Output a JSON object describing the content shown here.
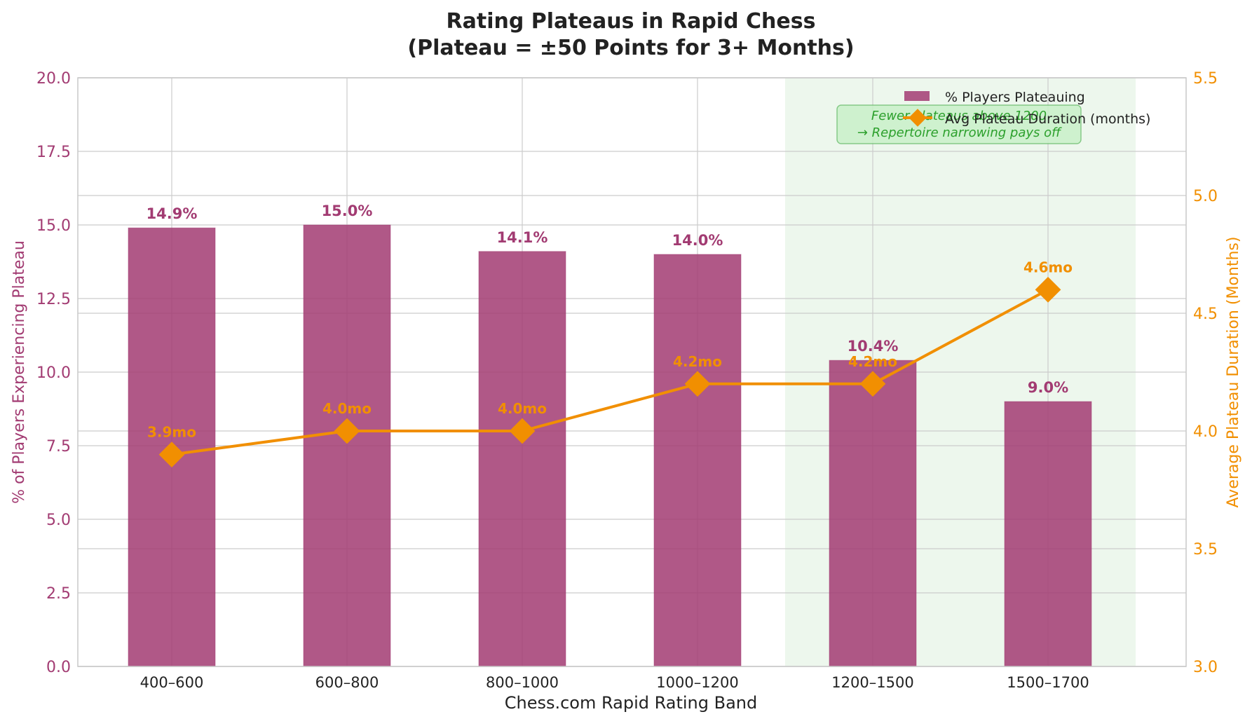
{
  "chart_data": {
    "type": "bar",
    "title": "Rating Plateaus in Rapid Chess",
    "subtitle": "(Plateau = ±50 Points for 3+ Months)",
    "xlabel": "Chess.com Rapid Rating Band",
    "ylabel_left": "% of Players Experiencing Plateau",
    "ylabel_right": "Average Plateau Duration (Months)",
    "categories": [
      "400–600",
      "600–800",
      "800–1000",
      "1000–1200",
      "1200–1500",
      "1500–1700"
    ],
    "ylim_left": [
      0,
      20
    ],
    "yticks_left": [
      "0.0",
      "2.5",
      "5.0",
      "7.5",
      "10.0",
      "12.5",
      "15.0",
      "17.5",
      "20.0"
    ],
    "ylim_right": [
      3.0,
      5.5
    ],
    "yticks_right": [
      "3.0",
      "3.5",
      "4.0",
      "4.5",
      "5.0",
      "5.5"
    ],
    "grid": true,
    "legend_position": "top-right",
    "series": [
      {
        "name": "% Players Plateauing",
        "type": "bar",
        "axis": "left",
        "values": [
          14.9,
          15.0,
          14.1,
          14.0,
          10.4,
          9.0
        ],
        "labels": [
          "14.9%",
          "15.0%",
          "14.1%",
          "14.0%",
          "10.4%",
          "9.0%"
        ],
        "color": "#A23B72"
      },
      {
        "name": "Avg Plateau Duration (months)",
        "type": "line",
        "marker": "diamond",
        "axis": "right",
        "values": [
          3.9,
          4.0,
          4.0,
          4.2,
          4.2,
          4.6
        ],
        "labels": [
          "3.9mo",
          "4.0mo",
          "4.0mo",
          "4.2mo",
          "4.2mo",
          "4.6mo"
        ],
        "color": "#F18F01"
      }
    ],
    "highlight": {
      "categories": [
        "1200–1500",
        "1500–1700"
      ],
      "color": "#4CAF50"
    },
    "annotation": {
      "lines": [
        "Fewer plateaus above 1200",
        "→ Repertoire narrowing pays off"
      ],
      "color": "#2CA02C"
    }
  }
}
